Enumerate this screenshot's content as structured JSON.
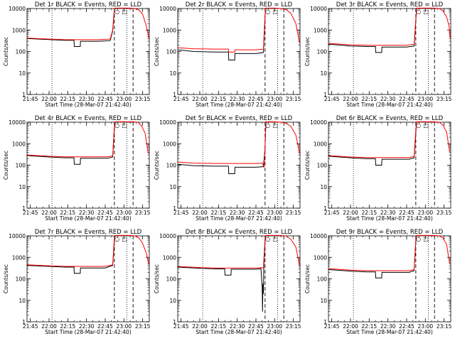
{
  "chart_data": {
    "type": "line",
    "scale": "log",
    "title_suffix": " BLACK = Events, RED = LLD",
    "xlabel": "Start Time (28-Mar-07 21:42:40)",
    "ylabel": "Counts/sec",
    "ylim": [
      1,
      10000
    ],
    "xlim": [
      -2.67,
      95.33
    ],
    "x_tick_labels": [
      "21:45",
      "22:00",
      "22:15",
      "22:30",
      "22:45",
      "23:00",
      "23:15"
    ],
    "y_tick_labels": [
      "1",
      "10",
      "100",
      "1000",
      "10000"
    ],
    "markers": {
      "dotted": [
        17.33,
        77.33
      ],
      "dashed": [
        67.33,
        82.33
      ],
      "legend_symbols": [
        "○",
        "□"
      ]
    },
    "colors": {
      "events": "#000000",
      "lld": "#ff0000",
      "axes": "#000000"
    },
    "panels": [
      {
        "det": "Det 1r",
        "events": [
          [
            -2.67,
            400
          ],
          [
            15,
            360
          ],
          [
            28,
            330
          ],
          [
            35,
            330
          ],
          [
            35.2,
            170
          ],
          [
            40,
            170
          ],
          [
            40.2,
            300
          ],
          [
            55,
            300
          ],
          [
            64,
            320
          ],
          [
            66,
            900
          ],
          [
            67.3,
            8500
          ],
          [
            68,
            9900
          ]
        ],
        "lld": [
          [
            -2.67,
            420
          ],
          [
            15,
            380
          ],
          [
            28,
            355
          ],
          [
            55,
            355
          ],
          [
            64,
            380
          ],
          [
            66,
            1000
          ],
          [
            67.3,
            9000
          ],
          [
            68,
            10500
          ],
          [
            74,
            10500
          ],
          [
            80,
            10500
          ],
          [
            84,
            10000
          ],
          [
            87,
            8500
          ],
          [
            90,
            5500
          ],
          [
            93,
            1500
          ],
          [
            95,
            400
          ]
        ]
      },
      {
        "det": "Det 2r",
        "events": [
          [
            -2.67,
            120
          ],
          [
            10,
            100
          ],
          [
            28,
            95
          ],
          [
            38,
            95
          ],
          [
            38.2,
            40
          ],
          [
            43,
            40
          ],
          [
            43.2,
            80
          ],
          [
            60,
            80
          ],
          [
            66,
            90
          ],
          [
            67.5,
            8000
          ],
          [
            68,
            9900
          ]
        ],
        "lld": [
          [
            -2.67,
            150
          ],
          [
            10,
            135
          ],
          [
            28,
            130
          ],
          [
            38,
            130
          ],
          [
            38.2,
            95
          ],
          [
            43,
            95
          ],
          [
            43.2,
            120
          ],
          [
            60,
            120
          ],
          [
            66,
            130
          ],
          [
            67.5,
            9000
          ],
          [
            68,
            10500
          ],
          [
            74,
            10500
          ],
          [
            80,
            10000
          ],
          [
            84,
            9000
          ],
          [
            88,
            6000
          ],
          [
            92,
            2000
          ],
          [
            95,
            250
          ]
        ]
      },
      {
        "det": "Det 3r",
        "events": [
          [
            -2.67,
            220
          ],
          [
            15,
            180
          ],
          [
            28,
            170
          ],
          [
            35,
            170
          ],
          [
            35.2,
            90
          ],
          [
            40,
            90
          ],
          [
            40.2,
            160
          ],
          [
            60,
            160
          ],
          [
            66,
            180
          ],
          [
            68,
            9900
          ]
        ],
        "lld": [
          [
            -2.67,
            240
          ],
          [
            15,
            205
          ],
          [
            28,
            195
          ],
          [
            40,
            195
          ],
          [
            60,
            195
          ],
          [
            66,
            220
          ],
          [
            68,
            10500
          ],
          [
            74,
            10500
          ],
          [
            82,
            10500
          ],
          [
            86,
            10000
          ],
          [
            89,
            8000
          ],
          [
            92,
            4000
          ],
          [
            94,
            1500
          ],
          [
            95,
            400
          ]
        ]
      },
      {
        "det": "Det 4r",
        "events": [
          [
            -2.67,
            280
          ],
          [
            15,
            240
          ],
          [
            28,
            220
          ],
          [
            35,
            220
          ],
          [
            35.2,
            110
          ],
          [
            40,
            110
          ],
          [
            40.2,
            210
          ],
          [
            62,
            210
          ],
          [
            66,
            240
          ],
          [
            67.3,
            5000
          ],
          [
            68,
            9900
          ]
        ],
        "lld": [
          [
            -2.67,
            300
          ],
          [
            15,
            260
          ],
          [
            28,
            245
          ],
          [
            62,
            245
          ],
          [
            66,
            270
          ],
          [
            67.3,
            6000
          ],
          [
            68,
            10500
          ],
          [
            74,
            10500
          ],
          [
            82,
            10500
          ],
          [
            86,
            10000
          ],
          [
            89,
            7000
          ],
          [
            92,
            3000
          ],
          [
            94.5,
            350
          ]
        ]
      },
      {
        "det": "Det 5r",
        "events": [
          [
            -2.67,
            110
          ],
          [
            10,
            95
          ],
          [
            28,
            90
          ],
          [
            38,
            90
          ],
          [
            38.2,
            40
          ],
          [
            43,
            40
          ],
          [
            43.2,
            80
          ],
          [
            60,
            80
          ],
          [
            66,
            85
          ],
          [
            67.3,
            600
          ],
          [
            68,
            9900
          ]
        ],
        "lld": [
          [
            -2.67,
            140
          ],
          [
            10,
            125
          ],
          [
            28,
            120
          ],
          [
            60,
            120
          ],
          [
            65,
            125
          ],
          [
            66.5,
            80
          ],
          [
            67.3,
            700
          ],
          [
            68,
            10500
          ],
          [
            74,
            10500
          ],
          [
            80,
            10000
          ],
          [
            84,
            9000
          ],
          [
            88,
            6500
          ],
          [
            92,
            2500
          ],
          [
            95,
            350
          ]
        ]
      },
      {
        "det": "Det 6r",
        "events": [
          [
            -2.67,
            260
          ],
          [
            15,
            220
          ],
          [
            28,
            200
          ],
          [
            35,
            200
          ],
          [
            35.2,
            100
          ],
          [
            40,
            100
          ],
          [
            40.2,
            190
          ],
          [
            62,
            190
          ],
          [
            66,
            220
          ],
          [
            67.3,
            3000
          ],
          [
            68,
            9900
          ]
        ],
        "lld": [
          [
            -2.67,
            280
          ],
          [
            15,
            240
          ],
          [
            28,
            225
          ],
          [
            62,
            225
          ],
          [
            66,
            250
          ],
          [
            67.3,
            4000
          ],
          [
            68,
            10500
          ],
          [
            74,
            10500
          ],
          [
            82,
            10500
          ],
          [
            86,
            10000
          ],
          [
            89,
            7500
          ],
          [
            92,
            3500
          ],
          [
            94.5,
            400
          ]
        ]
      },
      {
        "det": "Det 7r",
        "events": [
          [
            -2.67,
            420
          ],
          [
            15,
            380
          ],
          [
            28,
            350
          ],
          [
            35,
            350
          ],
          [
            35.2,
            180
          ],
          [
            40,
            180
          ],
          [
            40.2,
            320
          ],
          [
            60,
            320
          ],
          [
            66,
            420
          ],
          [
            67.3,
            6000
          ],
          [
            68,
            9900
          ]
        ],
        "lld": [
          [
            -2.67,
            450
          ],
          [
            15,
            405
          ],
          [
            28,
            380
          ],
          [
            60,
            380
          ],
          [
            66,
            450
          ],
          [
            67.3,
            7000
          ],
          [
            68,
            10500
          ],
          [
            74,
            10500
          ],
          [
            80,
            10500
          ],
          [
            84,
            10000
          ],
          [
            87,
            8000
          ],
          [
            90,
            4500
          ],
          [
            93,
            1500
          ],
          [
            95,
            450
          ]
        ]
      },
      {
        "det": "Det 8r",
        "events": [
          [
            -2.67,
            350
          ],
          [
            15,
            310
          ],
          [
            28,
            290
          ],
          [
            35,
            290
          ],
          [
            35.2,
            150
          ],
          [
            40,
            150
          ],
          [
            40.2,
            280
          ],
          [
            60,
            280
          ],
          [
            64,
            300
          ],
          [
            65,
            40
          ],
          [
            65.3,
            3
          ],
          [
            65.6,
            60
          ],
          [
            66,
            20
          ],
          [
            66.3,
            300
          ],
          [
            67.3,
            6000
          ],
          [
            68,
            9900
          ]
        ],
        "lld": [
          [
            -2.67,
            380
          ],
          [
            15,
            335
          ],
          [
            28,
            315
          ],
          [
            60,
            315
          ],
          [
            65,
            330
          ],
          [
            66,
            320
          ],
          [
            67.3,
            7000
          ],
          [
            68,
            10500
          ],
          [
            74,
            10500
          ],
          [
            80,
            10500
          ],
          [
            84,
            10000
          ],
          [
            88,
            7000
          ],
          [
            92,
            3000
          ],
          [
            95,
            400
          ]
        ]
      },
      {
        "det": "Det 9r",
        "events": [
          [
            -2.67,
            270
          ],
          [
            15,
            230
          ],
          [
            28,
            210
          ],
          [
            35,
            210
          ],
          [
            35.2,
            110
          ],
          [
            40,
            110
          ],
          [
            40.2,
            200
          ],
          [
            62,
            200
          ],
          [
            66,
            240
          ],
          [
            67.3,
            5000
          ],
          [
            68,
            9900
          ]
        ],
        "lld": [
          [
            -2.67,
            300
          ],
          [
            15,
            255
          ],
          [
            28,
            240
          ],
          [
            62,
            240
          ],
          [
            66,
            270
          ],
          [
            67.3,
            6000
          ],
          [
            68,
            10500
          ],
          [
            74,
            10500
          ],
          [
            82,
            10500
          ],
          [
            86,
            10000
          ],
          [
            89,
            8000
          ],
          [
            92,
            4000
          ],
          [
            94.5,
            500
          ]
        ]
      }
    ]
  }
}
